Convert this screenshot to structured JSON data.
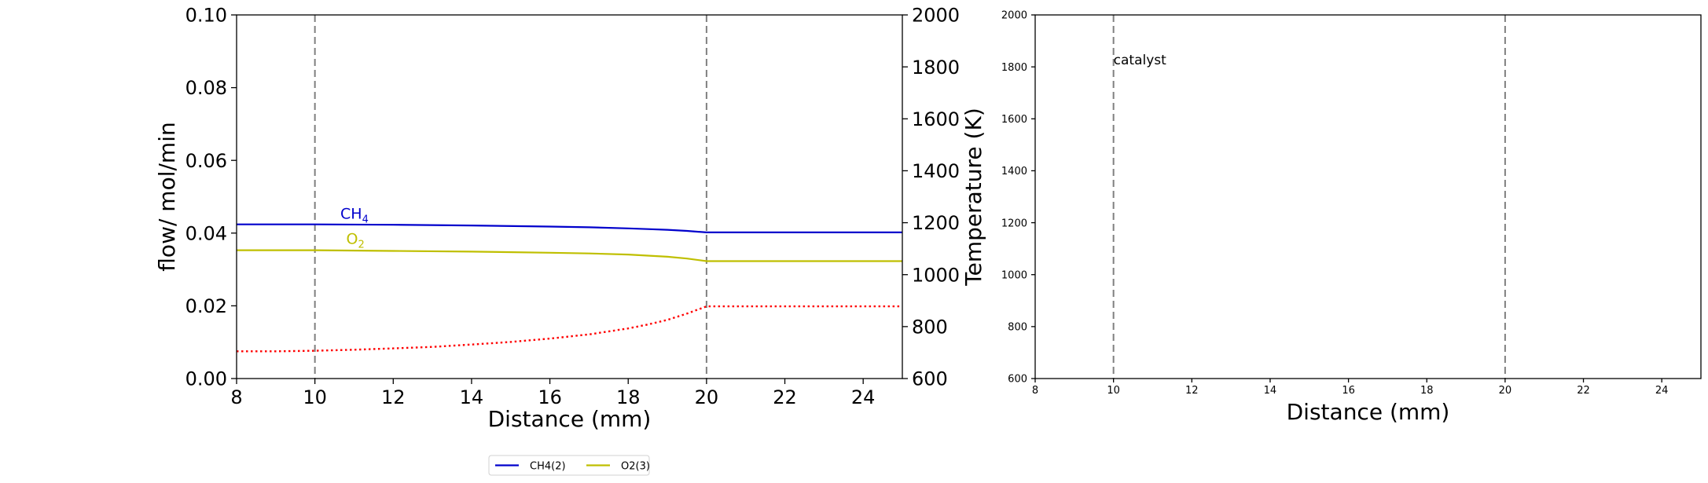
{
  "chart_data": [
    {
      "type": "line",
      "title": "",
      "xlabel": "Distance (mm)",
      "ylabel": "flow/ mol/min",
      "y2label": "Temperature (K)",
      "xlim": [
        8,
        25
      ],
      "ylim": [
        0,
        0.1
      ],
      "y2lim": [
        600,
        2000
      ],
      "xticks": [
        "8",
        "10",
        "12",
        "14",
        "16",
        "18",
        "20",
        "22",
        "24"
      ],
      "yticks": [
        "0.00",
        "0.02",
        "0.04",
        "0.06",
        "0.08",
        "0.10"
      ],
      "y2ticks": [
        "600",
        "800",
        "1000",
        "1200",
        "1400",
        "1600",
        "1800",
        "2000"
      ],
      "grid": false,
      "vlines": [
        10,
        20
      ],
      "series": [
        {
          "name": "CH4(2)",
          "axis": "left",
          "color": "#0000cc",
          "style": "solid",
          "x": [
            8,
            10,
            12,
            14,
            16,
            17,
            18,
            18.5,
            19,
            19.5,
            20,
            22,
            24,
            25
          ],
          "y": [
            0.0424,
            0.0424,
            0.0423,
            0.0421,
            0.0418,
            0.0416,
            0.0413,
            0.0411,
            0.0409,
            0.0406,
            0.0402,
            0.0402,
            0.0402,
            0.0402
          ]
        },
        {
          "name": "O2(3)",
          "axis": "left",
          "color": "#bfbf00",
          "style": "solid",
          "x": [
            8,
            10,
            12,
            14,
            16,
            17,
            18,
            18.5,
            19,
            19.5,
            20,
            22,
            24,
            25
          ],
          "y": [
            0.0353,
            0.0353,
            0.0351,
            0.0349,
            0.0346,
            0.0344,
            0.0341,
            0.0338,
            0.0335,
            0.033,
            0.0323,
            0.0323,
            0.0323,
            0.0323
          ]
        },
        {
          "axis": "right",
          "color": "#ff0000",
          "style": "dotted",
          "x": [
            8,
            9,
            10,
            11,
            12,
            13,
            14,
            15,
            16,
            17,
            18,
            18.5,
            19,
            19.5,
            20,
            22,
            24,
            25
          ],
          "y": [
            705,
            705,
            707,
            711,
            716,
            722,
            731,
            741,
            754,
            770,
            793,
            808,
            826,
            850,
            878,
            878,
            878,
            878
          ]
        }
      ],
      "annotations": [
        {
          "text": "CH",
          "sub": "4",
          "x": 10.65,
          "y": 0.044,
          "color": "#0000cc"
        },
        {
          "text": "O",
          "sub": "2",
          "x": 10.8,
          "y": 0.037,
          "color": "#bfbf00"
        }
      ],
      "legend": {
        "placement": "bottom-center",
        "entries": [
          {
            "label": "CH4(2)",
            "color": "#0000cc"
          },
          {
            "label": "O2(3)",
            "color": "#bfbf00"
          }
        ]
      }
    },
    {
      "type": "line",
      "title": "",
      "xlabel": "Distance (mm)",
      "ylabel": "",
      "xlim": [
        8,
        25
      ],
      "ylim": [
        600,
        2000
      ],
      "xticks": [
        "8",
        "10",
        "12",
        "14",
        "16",
        "18",
        "20",
        "22",
        "24"
      ],
      "yticks": [
        "600",
        "800",
        "1000",
        "1200",
        "1400",
        "1600",
        "1800",
        "2000"
      ],
      "grid": false,
      "vlines": [
        10,
        20
      ],
      "series": [],
      "annotations": [
        {
          "text": "catalyst",
          "x": 10,
          "y": 1810
        }
      ]
    }
  ]
}
